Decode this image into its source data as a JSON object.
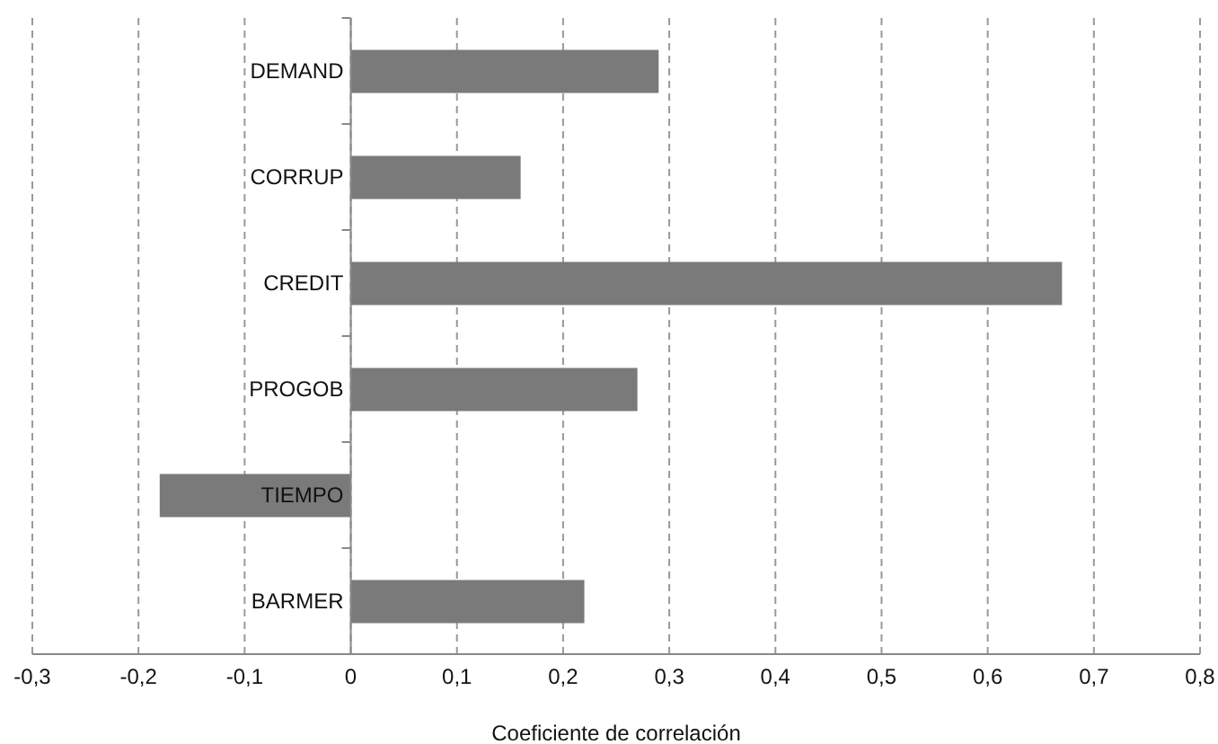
{
  "chart_data": {
    "type": "bar",
    "orientation": "horizontal",
    "xlabel": "Coeficiente de correlación",
    "categories": [
      "DEMAND",
      "CORRUP",
      "CREDIT",
      "PROGOB",
      "TIEMPO",
      "BARMER"
    ],
    "values": [
      0.29,
      0.16,
      0.67,
      0.27,
      -0.18,
      0.22
    ],
    "color": "#7a7a7a",
    "xlim": [
      -0.3,
      0.8
    ],
    "xticks": [
      {
        "value": -0.3,
        "label": "-0,3"
      },
      {
        "value": -0.2,
        "label": "-0,2"
      },
      {
        "value": -0.1,
        "label": "-0,1"
      },
      0,
      {
        "value": 0.1,
        "label": "0,1"
      },
      {
        "value": 0.2,
        "label": "0,2"
      },
      {
        "value": 0.3,
        "label": "0,3"
      },
      {
        "value": 0.4,
        "label": "0,4"
      },
      {
        "value": 0.5,
        "label": "0,5"
      },
      {
        "value": 0.6,
        "label": "0,6"
      },
      {
        "value": 0.7,
        "label": "0,7"
      },
      {
        "value": 0.8,
        "label": "0,8"
      }
    ],
    "grid": "x"
  }
}
